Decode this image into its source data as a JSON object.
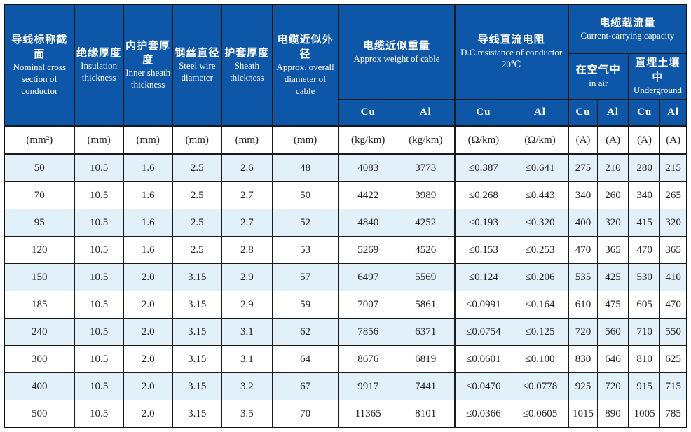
{
  "table": {
    "columns": [
      {
        "zh": "导线标称截面",
        "en": "Nominal cross section of conductor"
      },
      {
        "zh": "绝缘厚度",
        "en": "Insulation thickness"
      },
      {
        "zh": "内护套厚度",
        "en": "Inner sheath thickness"
      },
      {
        "zh": "钢丝直径",
        "en": "Steel wire diameter"
      },
      {
        "zh": "护套厚度",
        "en": "Sheath thickness"
      },
      {
        "zh": "电缆近似外径",
        "en": "Approx. overall diameter of cable"
      }
    ],
    "groups": {
      "weight": {
        "zh": "电缆近似重量",
        "en": "Approx weight of cable",
        "sub": [
          "Cu",
          "Al"
        ]
      },
      "resistance": {
        "zh": "导线直流电阻",
        "en": "D.C.resistance of conductor",
        "temp": "20℃",
        "sub": [
          "Cu",
          "Al"
        ]
      },
      "capacity": {
        "zh": "电缆载流量",
        "en": "Current-carrying capacity",
        "in_air": {
          "zh": "在空气中",
          "en": "in air"
        },
        "underground": {
          "zh": "直埋土壤中",
          "en": "Underground"
        },
        "sub": [
          "Cu",
          "Al",
          "Cu",
          "Al"
        ]
      }
    },
    "units_row": [
      "(mm²)",
      "(mm)",
      "(mm)",
      "(mm)",
      "(mm)",
      "(mm)",
      "(kg/km)",
      "(kg/km)",
      "(Ω/km)",
      "(Ω/km)",
      "(A)",
      "(A)",
      "(A)",
      "(A)"
    ],
    "rows": [
      [
        "50",
        "10.5",
        "1.6",
        "2.5",
        "2.6",
        "48",
        "4083",
        "3773",
        "≤0.387",
        "≤0.641",
        "275",
        "210",
        "280",
        "215"
      ],
      [
        "70",
        "10.5",
        "1.6",
        "2.5",
        "2.7",
        "50",
        "4422",
        "3989",
        "≤0.268",
        "≤0.443",
        "340",
        "260",
        "340",
        "265"
      ],
      [
        "95",
        "10.5",
        "1.6",
        "2.5",
        "2.7",
        "52",
        "4840",
        "4252",
        "≤0.193",
        "≤0.320",
        "400",
        "320",
        "415",
        "320"
      ],
      [
        "120",
        "10.5",
        "1.6",
        "2.5",
        "2.8",
        "53",
        "5269",
        "4526",
        "≤0.153",
        "≤0.253",
        "470",
        "365",
        "470",
        "365"
      ],
      [
        "150",
        "10.5",
        "2.0",
        "3.15",
        "2.9",
        "57",
        "6497",
        "5569",
        "≤0.124",
        "≤0.206",
        "535",
        "425",
        "530",
        "410"
      ],
      [
        "185",
        "10.5",
        "2.0",
        "3.15",
        "2.9",
        "59",
        "7007",
        "5861",
        "≤0.0991",
        "≤0.164",
        "610",
        "475",
        "605",
        "470"
      ],
      [
        "240",
        "10.5",
        "2.0",
        "3.15",
        "3.1",
        "62",
        "7856",
        "6371",
        "≤0.0754",
        "≤0.125",
        "720",
        "560",
        "710",
        "550"
      ],
      [
        "300",
        "10.5",
        "2.0",
        "3.15",
        "3.1",
        "64",
        "8676",
        "6819",
        "≤0.0601",
        "≤0.100",
        "830",
        "646",
        "810",
        "625"
      ],
      [
        "400",
        "10.5",
        "2.0",
        "3.15",
        "3.2",
        "67",
        "9917",
        "7441",
        "≤0.0470",
        "≤0.0778",
        "925",
        "720",
        "915",
        "715"
      ],
      [
        "500",
        "10.5",
        "2.0",
        "3.15",
        "3.5",
        "70",
        "11365",
        "8101",
        "≤0.0366",
        "≤0.0605",
        "1015",
        "890",
        "1005",
        "785"
      ]
    ]
  },
  "colors": {
    "header_bg": "#0e57a8",
    "row_alt_bg": "#e2f0f9",
    "border": "#1a1a1a",
    "header_text": "#ffffff",
    "body_text": "#222222"
  }
}
